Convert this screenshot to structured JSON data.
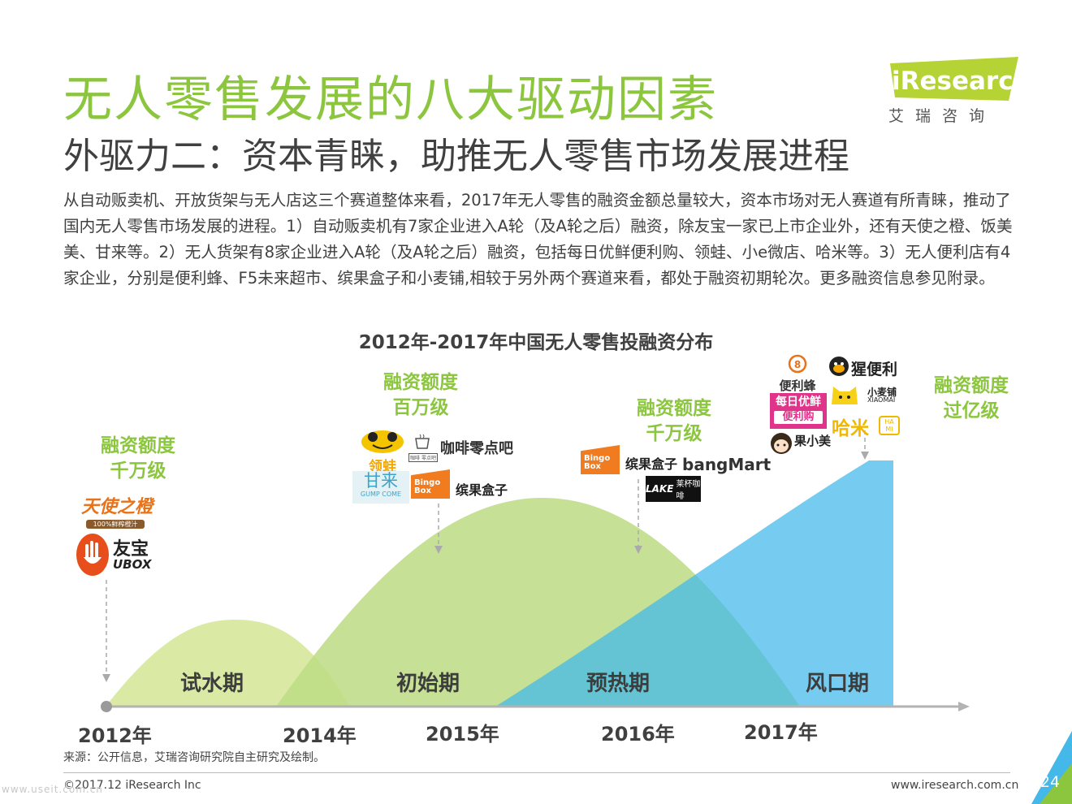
{
  "header": {
    "title": "无人零售发展的八大驱动因素",
    "subtitle": "外驱力二：资本青睐，助推无人零售市场发展进程",
    "brand": {
      "name": "iResearch",
      "cn": "艾瑞咨询"
    }
  },
  "body_text": "从自动贩卖机、开放货架与无人店这三个赛道整体来看，2017年无人零售的融资金额总量较大，资本市场对无人赛道有所青睐，推动了国内无人零售市场发展的进程。1）自动贩卖机有7家企业进入A轮（及A轮之后）融资，除友宝一家已上市企业外，还有天使之橙、饭美美、甘来等。2）无人货架有8家企业进入A轮（及A轮之后）融资，包括每日优鲜便利购、领蛙、小e微店、哈米等。3）无人便利店有4家企业，分别是便利蜂、F5未来超市、缤果盒子和小麦铺,相较于另外两个赛道来看，都处于融资初期轮次。更多融资信息参见附录。",
  "chart": {
    "title": "2012年-2017年中国无人零售投融资分布",
    "phases": [
      {
        "name": "试水期",
        "color": "#d6e89b"
      },
      {
        "name": "初始期",
        "color": "#c2de8c"
      },
      {
        "name": "预热期",
        "color": "#86cc8e"
      },
      {
        "name": "风口期",
        "color": "#3fb8ea"
      }
    ],
    "years": [
      "2012年",
      "2014年",
      "2015年",
      "2016年",
      "2017年"
    ],
    "notes": [
      {
        "line1": "融资额度",
        "line2": "千万级"
      },
      {
        "line1": "融资额度",
        "line2": "百万级"
      },
      {
        "line1": "融资额度",
        "line2": "千万级"
      },
      {
        "line1": "融资额度",
        "line2": "过亿级"
      }
    ],
    "logos": {
      "tianshi": {
        "main": "天使之橙",
        "sub": "100%鲜榨橙汁"
      },
      "ubox": {
        "cn": "友宝",
        "en": "UBOX"
      },
      "lingwa": "领蛙",
      "ganlai": {
        "cn": "甘来",
        "en": "GUMP COME"
      },
      "cafe": "咖啡零点吧",
      "cafe_sub": "咖啡 零点吧",
      "bingo": {
        "icon": "Bingo Box",
        "cn": "缤果盒子"
      },
      "bangmart": "bangMart",
      "laike": {
        "en": "LAKE",
        "cn": "莱杯咖啡"
      },
      "bianlifeng": "便利蜂",
      "xingbianli": "猩便利",
      "xiaomai": {
        "cn": "小麦铺",
        "en": "XIAOMAI"
      },
      "meiri": {
        "line1": "每日优鲜",
        "line2": "便利购"
      },
      "hami": {
        "cn": "哈米",
        "sub": "HA MI"
      },
      "guoguo": "果小美"
    }
  },
  "footer": {
    "source": "来源：公开信息，艾瑞咨询研究院自主研究及绘制。",
    "copyright": "©2017.12 iResearch Inc",
    "site": "www.iresearch.com.cn",
    "page": "24",
    "watermark": "www.useit.com.cn"
  },
  "colors": {
    "accent": "#8cc63f",
    "text": "#404040",
    "blue": "#3fb8ea"
  }
}
